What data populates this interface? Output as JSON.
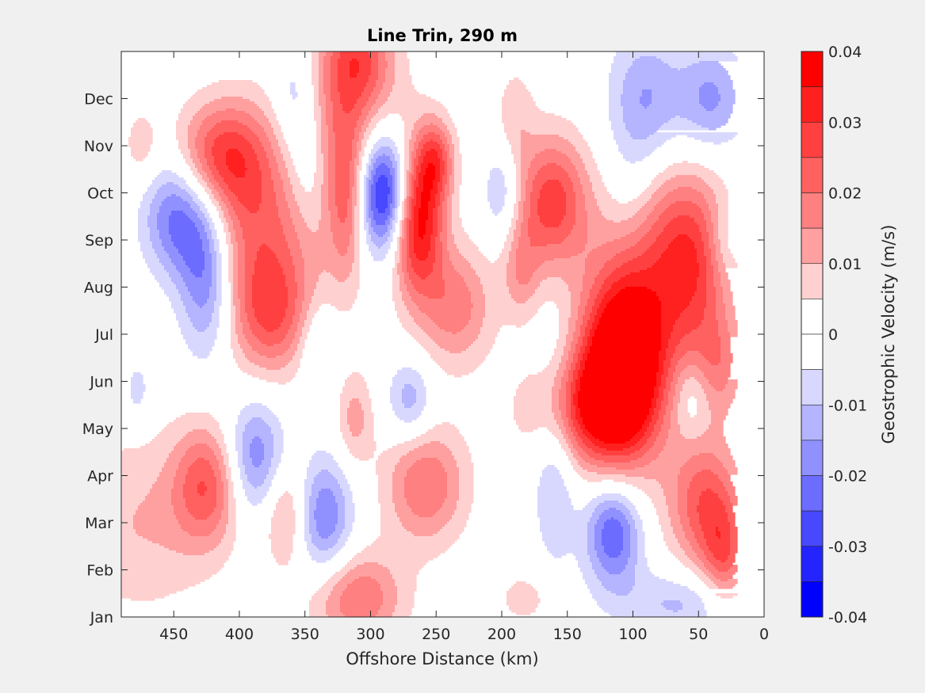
{
  "chart_data": {
    "type": "heatmap",
    "subtype": "filled-contour",
    "title": "Line Trin, 290 m",
    "xlabel": "Offshore Distance (km)",
    "ylabel": "",
    "x_reversed": true,
    "xlim": [
      490,
      0
    ],
    "xticks": [
      450,
      400,
      350,
      300,
      250,
      200,
      150,
      100,
      50,
      0
    ],
    "ylim": [
      1,
      13
    ],
    "yticks": [
      {
        "value": 1,
        "label": "Jan"
      },
      {
        "value": 2,
        "label": "Feb"
      },
      {
        "value": 3,
        "label": "Mar"
      },
      {
        "value": 4,
        "label": "Apr"
      },
      {
        "value": 5,
        "label": "May"
      },
      {
        "value": 6,
        "label": "Jun"
      },
      {
        "value": 7,
        "label": "Jul"
      },
      {
        "value": 8,
        "label": "Aug"
      },
      {
        "value": 9,
        "label": "Sep"
      },
      {
        "value": 10,
        "label": "Oct"
      },
      {
        "value": 11,
        "label": "Nov"
      },
      {
        "value": 12,
        "label": "Dec"
      }
    ],
    "data_extent_x": [
      20,
      490
    ],
    "colorbar": {
      "label": "Geostrophic Velocity (m/s)",
      "range": [
        -0.04,
        0.04
      ],
      "ticks": [
        {
          "value": 0.04,
          "label": "0.04"
        },
        {
          "value": 0.03,
          "label": "0.03"
        },
        {
          "value": 0.02,
          "label": "0.02"
        },
        {
          "value": 0.01,
          "label": "0.01"
        },
        {
          "value": 0,
          "label": "0"
        },
        {
          "value": -0.01,
          "label": "-0.01"
        },
        {
          "value": -0.02,
          "label": "-0.02"
        },
        {
          "value": -0.03,
          "label": "-0.03"
        },
        {
          "value": -0.04,
          "label": "-0.04"
        }
      ],
      "levels": [
        {
          "min": 0.035,
          "max": 0.04,
          "color": "#ff0000"
        },
        {
          "min": 0.03,
          "max": 0.035,
          "color": "#ff2020"
        },
        {
          "min": 0.025,
          "max": 0.03,
          "color": "#ff4040"
        },
        {
          "min": 0.02,
          "max": 0.025,
          "color": "#ff6060"
        },
        {
          "min": 0.015,
          "max": 0.02,
          "color": "#ff8080"
        },
        {
          "min": 0.01,
          "max": 0.015,
          "color": "#ffa0a0"
        },
        {
          "min": 0.005,
          "max": 0.01,
          "color": "#ffd0d0"
        },
        {
          "min": 0,
          "max": 0.005,
          "color": "#ffffff"
        },
        {
          "min": -0.005,
          "max": 0,
          "color": "#ffffff"
        },
        {
          "min": -0.01,
          "max": -0.005,
          "color": "#d8d8ff"
        },
        {
          "min": -0.015,
          "max": -0.01,
          "color": "#b4b4ff"
        },
        {
          "min": -0.02,
          "max": -0.015,
          "color": "#9090ff"
        },
        {
          "min": -0.025,
          "max": -0.02,
          "color": "#6c6cff"
        },
        {
          "min": -0.03,
          "max": -0.025,
          "color": "#4848ff"
        },
        {
          "min": -0.035,
          "max": -0.03,
          "color": "#2424ff"
        },
        {
          "min": -0.04,
          "max": -0.035,
          "color": "#0000ff"
        }
      ]
    },
    "features": [
      {
        "x": 265,
        "y": 9.5,
        "sx": 14,
        "sy": 1.1,
        "amp": 0.042
      },
      {
        "x": 250,
        "y": 10.7,
        "sx": 10,
        "sy": 0.6,
        "amp": 0.02
      },
      {
        "x": 235,
        "y": 7.6,
        "sx": 20,
        "sy": 0.9,
        "amp": 0.018
      },
      {
        "x": 288,
        "y": 10.0,
        "sx": 15,
        "sy": 0.9,
        "amp": -0.042
      },
      {
        "x": 320,
        "y": 11.6,
        "sx": 30,
        "sy": 1.4,
        "amp": 0.015
      },
      {
        "x": 310,
        "y": 12.9,
        "sx": 18,
        "sy": 0.8,
        "amp": 0.02
      },
      {
        "x": 318,
        "y": 9.8,
        "sx": 10,
        "sy": 1.2,
        "amp": 0.018
      },
      {
        "x": 420,
        "y": 10.8,
        "sx": 22,
        "sy": 0.8,
        "amp": 0.02
      },
      {
        "x": 395,
        "y": 10.6,
        "sx": 22,
        "sy": 1.0,
        "amp": 0.014
      },
      {
        "x": 382,
        "y": 8.4,
        "sx": 32,
        "sy": 1.4,
        "amp": 0.022
      },
      {
        "x": 375,
        "y": 7.3,
        "sx": 18,
        "sy": 0.8,
        "amp": 0.012
      },
      {
        "x": 448,
        "y": 9.5,
        "sx": 18,
        "sy": 0.9,
        "amp": -0.022
      },
      {
        "x": 425,
        "y": 8.2,
        "sx": 15,
        "sy": 1.2,
        "amp": -0.024
      },
      {
        "x": 358,
        "y": 12.0,
        "sx": 12,
        "sy": 1.0,
        "amp": -0.012
      },
      {
        "x": 348,
        "y": 10.6,
        "sx": 10,
        "sy": 1.0,
        "amp": -0.008
      },
      {
        "x": 162,
        "y": 9.8,
        "sx": 20,
        "sy": 1.0,
        "amp": 0.028
      },
      {
        "x": 185,
        "y": 8.3,
        "sx": 10,
        "sy": 0.7,
        "amp": 0.012
      },
      {
        "x": 190,
        "y": 11.7,
        "sx": 10,
        "sy": 0.7,
        "amp": 0.008
      },
      {
        "x": 200,
        "y": 10.0,
        "sx": 10,
        "sy": 0.7,
        "amp": -0.012
      },
      {
        "x": 110,
        "y": 6.2,
        "sx": 22,
        "sy": 1.4,
        "amp": 0.046
      },
      {
        "x": 85,
        "y": 7.6,
        "sx": 30,
        "sy": 1.6,
        "amp": 0.018
      },
      {
        "x": 52,
        "y": 8.4,
        "sx": 20,
        "sy": 1.2,
        "amp": 0.018
      },
      {
        "x": 140,
        "y": 5.4,
        "sx": 30,
        "sy": 0.8,
        "amp": 0.022
      },
      {
        "x": 35,
        "y": 6.3,
        "sx": 15,
        "sy": 0.8,
        "amp": 0.014
      },
      {
        "x": 70,
        "y": 9.5,
        "sx": 30,
        "sy": 1.0,
        "amp": 0.009
      },
      {
        "x": 100,
        "y": 10.0,
        "sx": 15,
        "sy": 1.0,
        "amp": -0.007
      },
      {
        "x": 55,
        "y": 5.7,
        "sx": 10,
        "sy": 0.6,
        "amp": -0.01
      },
      {
        "x": 90,
        "y": 12.0,
        "sx": 20,
        "sy": 1.0,
        "amp": -0.015
      },
      {
        "x": 40,
        "y": 12.0,
        "sx": 18,
        "sy": 0.8,
        "amp": -0.016
      },
      {
        "x": 30,
        "y": 9.0,
        "sx": 10,
        "sy": 0.6,
        "amp": -0.008
      },
      {
        "x": 45,
        "y": 3.4,
        "sx": 20,
        "sy": 1.0,
        "amp": 0.024
      },
      {
        "x": 30,
        "y": 2.2,
        "sx": 12,
        "sy": 0.8,
        "amp": 0.018
      },
      {
        "x": 115,
        "y": 2.8,
        "sx": 15,
        "sy": 0.8,
        "amp": -0.026
      },
      {
        "x": 60,
        "y": 1.3,
        "sx": 35,
        "sy": 0.5,
        "amp": -0.012
      },
      {
        "x": 160,
        "y": 4.4,
        "sx": 12,
        "sy": 1.6,
        "amp": -0.012
      },
      {
        "x": 425,
        "y": 3.8,
        "sx": 18,
        "sy": 0.9,
        "amp": 0.022
      },
      {
        "x": 475,
        "y": 3.0,
        "sx": 40,
        "sy": 1.4,
        "amp": 0.01
      },
      {
        "x": 388,
        "y": 4.4,
        "sx": 16,
        "sy": 0.9,
        "amp": -0.02
      },
      {
        "x": 365,
        "y": 3.2,
        "sx": 12,
        "sy": 0.8,
        "amp": 0.014
      },
      {
        "x": 335,
        "y": 3.1,
        "sx": 15,
        "sy": 0.9,
        "amp": -0.02
      },
      {
        "x": 258,
        "y": 3.8,
        "sx": 22,
        "sy": 0.9,
        "amp": 0.02
      },
      {
        "x": 310,
        "y": 1.4,
        "sx": 25,
        "sy": 0.7,
        "amp": 0.02
      },
      {
        "x": 312,
        "y": 5.2,
        "sx": 10,
        "sy": 0.7,
        "amp": 0.012
      },
      {
        "x": 270,
        "y": 5.6,
        "sx": 12,
        "sy": 0.6,
        "amp": -0.014
      },
      {
        "x": 340,
        "y": 6.7,
        "sx": 10,
        "sy": 0.7,
        "amp": -0.01
      },
      {
        "x": 478,
        "y": 5.8,
        "sx": 8,
        "sy": 0.5,
        "amp": -0.008
      },
      {
        "x": 475,
        "y": 11.0,
        "sx": 10,
        "sy": 0.6,
        "amp": 0.008
      },
      {
        "x": 182,
        "y": 1.4,
        "sx": 15,
        "sy": 0.4,
        "amp": 0.008
      }
    ]
  }
}
